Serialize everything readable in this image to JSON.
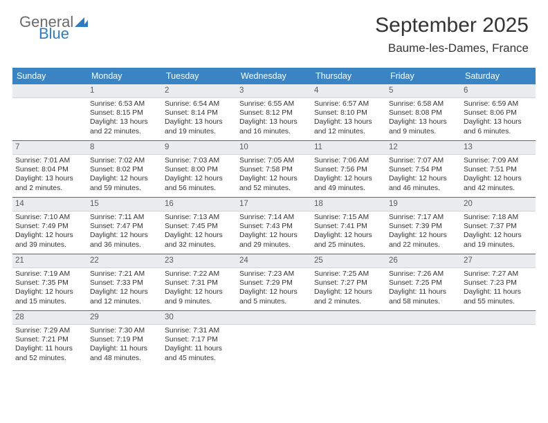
{
  "brand": {
    "part1": "General",
    "part2": "Blue"
  },
  "title": "September 2025",
  "location": "Baume-les-Dames, France",
  "colors": {
    "header_bg": "#3b84c4",
    "header_fg": "#ffffff",
    "daynum_bg": "#e9edf0",
    "divider": "#3b6fa0",
    "text": "#333333",
    "brand_gray": "#6a6a6a",
    "brand_blue": "#2e7cc0",
    "background": "#ffffff"
  },
  "fonts": {
    "title_pt": 30,
    "location_pt": 17,
    "dayheader_pt": 12.5,
    "cell_pt": 10.4
  },
  "day_names": [
    "Sunday",
    "Monday",
    "Tuesday",
    "Wednesday",
    "Thursday",
    "Friday",
    "Saturday"
  ],
  "weeks": [
    [
      {
        "n": "",
        "sr": "",
        "ss": "",
        "dl": ""
      },
      {
        "n": "1",
        "sr": "Sunrise: 6:53 AM",
        "ss": "Sunset: 8:15 PM",
        "dl": "Daylight: 13 hours and 22 minutes."
      },
      {
        "n": "2",
        "sr": "Sunrise: 6:54 AM",
        "ss": "Sunset: 8:14 PM",
        "dl": "Daylight: 13 hours and 19 minutes."
      },
      {
        "n": "3",
        "sr": "Sunrise: 6:55 AM",
        "ss": "Sunset: 8:12 PM",
        "dl": "Daylight: 13 hours and 16 minutes."
      },
      {
        "n": "4",
        "sr": "Sunrise: 6:57 AM",
        "ss": "Sunset: 8:10 PM",
        "dl": "Daylight: 13 hours and 12 minutes."
      },
      {
        "n": "5",
        "sr": "Sunrise: 6:58 AM",
        "ss": "Sunset: 8:08 PM",
        "dl": "Daylight: 13 hours and 9 minutes."
      },
      {
        "n": "6",
        "sr": "Sunrise: 6:59 AM",
        "ss": "Sunset: 8:06 PM",
        "dl": "Daylight: 13 hours and 6 minutes."
      }
    ],
    [
      {
        "n": "7",
        "sr": "Sunrise: 7:01 AM",
        "ss": "Sunset: 8:04 PM",
        "dl": "Daylight: 13 hours and 2 minutes."
      },
      {
        "n": "8",
        "sr": "Sunrise: 7:02 AM",
        "ss": "Sunset: 8:02 PM",
        "dl": "Daylight: 12 hours and 59 minutes."
      },
      {
        "n": "9",
        "sr": "Sunrise: 7:03 AM",
        "ss": "Sunset: 8:00 PM",
        "dl": "Daylight: 12 hours and 56 minutes."
      },
      {
        "n": "10",
        "sr": "Sunrise: 7:05 AM",
        "ss": "Sunset: 7:58 PM",
        "dl": "Daylight: 12 hours and 52 minutes."
      },
      {
        "n": "11",
        "sr": "Sunrise: 7:06 AM",
        "ss": "Sunset: 7:56 PM",
        "dl": "Daylight: 12 hours and 49 minutes."
      },
      {
        "n": "12",
        "sr": "Sunrise: 7:07 AM",
        "ss": "Sunset: 7:54 PM",
        "dl": "Daylight: 12 hours and 46 minutes."
      },
      {
        "n": "13",
        "sr": "Sunrise: 7:09 AM",
        "ss": "Sunset: 7:51 PM",
        "dl": "Daylight: 12 hours and 42 minutes."
      }
    ],
    [
      {
        "n": "14",
        "sr": "Sunrise: 7:10 AM",
        "ss": "Sunset: 7:49 PM",
        "dl": "Daylight: 12 hours and 39 minutes."
      },
      {
        "n": "15",
        "sr": "Sunrise: 7:11 AM",
        "ss": "Sunset: 7:47 PM",
        "dl": "Daylight: 12 hours and 36 minutes."
      },
      {
        "n": "16",
        "sr": "Sunrise: 7:13 AM",
        "ss": "Sunset: 7:45 PM",
        "dl": "Daylight: 12 hours and 32 minutes."
      },
      {
        "n": "17",
        "sr": "Sunrise: 7:14 AM",
        "ss": "Sunset: 7:43 PM",
        "dl": "Daylight: 12 hours and 29 minutes."
      },
      {
        "n": "18",
        "sr": "Sunrise: 7:15 AM",
        "ss": "Sunset: 7:41 PM",
        "dl": "Daylight: 12 hours and 25 minutes."
      },
      {
        "n": "19",
        "sr": "Sunrise: 7:17 AM",
        "ss": "Sunset: 7:39 PM",
        "dl": "Daylight: 12 hours and 22 minutes."
      },
      {
        "n": "20",
        "sr": "Sunrise: 7:18 AM",
        "ss": "Sunset: 7:37 PM",
        "dl": "Daylight: 12 hours and 19 minutes."
      }
    ],
    [
      {
        "n": "21",
        "sr": "Sunrise: 7:19 AM",
        "ss": "Sunset: 7:35 PM",
        "dl": "Daylight: 12 hours and 15 minutes."
      },
      {
        "n": "22",
        "sr": "Sunrise: 7:21 AM",
        "ss": "Sunset: 7:33 PM",
        "dl": "Daylight: 12 hours and 12 minutes."
      },
      {
        "n": "23",
        "sr": "Sunrise: 7:22 AM",
        "ss": "Sunset: 7:31 PM",
        "dl": "Daylight: 12 hours and 9 minutes."
      },
      {
        "n": "24",
        "sr": "Sunrise: 7:23 AM",
        "ss": "Sunset: 7:29 PM",
        "dl": "Daylight: 12 hours and 5 minutes."
      },
      {
        "n": "25",
        "sr": "Sunrise: 7:25 AM",
        "ss": "Sunset: 7:27 PM",
        "dl": "Daylight: 12 hours and 2 minutes."
      },
      {
        "n": "26",
        "sr": "Sunrise: 7:26 AM",
        "ss": "Sunset: 7:25 PM",
        "dl": "Daylight: 11 hours and 58 minutes."
      },
      {
        "n": "27",
        "sr": "Sunrise: 7:27 AM",
        "ss": "Sunset: 7:23 PM",
        "dl": "Daylight: 11 hours and 55 minutes."
      }
    ],
    [
      {
        "n": "28",
        "sr": "Sunrise: 7:29 AM",
        "ss": "Sunset: 7:21 PM",
        "dl": "Daylight: 11 hours and 52 minutes."
      },
      {
        "n": "29",
        "sr": "Sunrise: 7:30 AM",
        "ss": "Sunset: 7:19 PM",
        "dl": "Daylight: 11 hours and 48 minutes."
      },
      {
        "n": "30",
        "sr": "Sunrise: 7:31 AM",
        "ss": "Sunset: 7:17 PM",
        "dl": "Daylight: 11 hours and 45 minutes."
      },
      {
        "n": "",
        "sr": "",
        "ss": "",
        "dl": ""
      },
      {
        "n": "",
        "sr": "",
        "ss": "",
        "dl": ""
      },
      {
        "n": "",
        "sr": "",
        "ss": "",
        "dl": ""
      },
      {
        "n": "",
        "sr": "",
        "ss": "",
        "dl": ""
      }
    ]
  ]
}
